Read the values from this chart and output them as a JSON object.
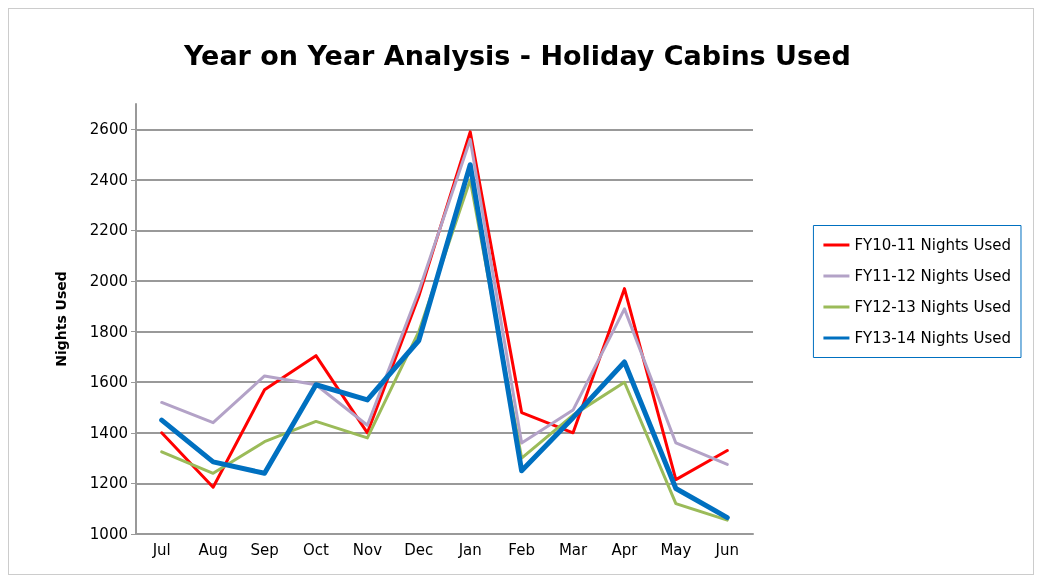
{
  "chart_data": {
    "type": "line",
    "title": "Year on Year Analysis - Holiday Cabins Used",
    "ylabel": "Nights Used",
    "categories": [
      "Jul",
      "Aug",
      "Sep",
      "Oct",
      "Nov",
      "Dec",
      "Jan",
      "Feb",
      "Mar",
      "Apr",
      "May",
      "Jun"
    ],
    "series": [
      {
        "name": "FY10-11 Nights Used",
        "color": "#ff0000",
        "values": [
          1400,
          1185,
          1570,
          1705,
          1400,
          1940,
          2590,
          1480,
          1400,
          1970,
          1215,
          1330
        ]
      },
      {
        "name": "FY11-12 Nights Used",
        "color": "#b3a2c7",
        "values": [
          1520,
          1440,
          1625,
          1590,
          1430,
          1960,
          2560,
          1360,
          1490,
          1890,
          1360,
          1275
        ]
      },
      {
        "name": "FY12-13 Nights Used",
        "color": "#9bbb59",
        "values": [
          1325,
          1240,
          1365,
          1445,
          1380,
          1800,
          2400,
          1300,
          1470,
          1600,
          1120,
          1055
        ]
      },
      {
        "name": "FY13-14 Nights Used",
        "color": "#0070c0",
        "values": [
          1450,
          1285,
          1240,
          1590,
          1530,
          1765,
          2460,
          1250,
          1460,
          1680,
          1180,
          1065
        ]
      }
    ],
    "ylim": [
      1000,
      2700
    ],
    "yticks": [
      1000,
      1200,
      1400,
      1600,
      1800,
      2000,
      2200,
      2400,
      2600
    ],
    "grid": "y",
    "legend": "right",
    "marker": "none",
    "line_style": "solid"
  }
}
